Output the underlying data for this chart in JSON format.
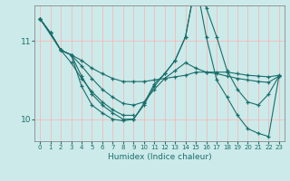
{
  "xlabel": "Humidex (Indice chaleur)",
  "bg_color": "#cceaea",
  "grid_color": "#f5baba",
  "line_color": "#1a6e6a",
  "xlim": [
    -0.5,
    23.5
  ],
  "ylim": [
    9.72,
    11.45
  ],
  "yticks": [
    10,
    11
  ],
  "xticks": [
    0,
    1,
    2,
    3,
    4,
    5,
    6,
    7,
    8,
    9,
    10,
    11,
    12,
    13,
    14,
    15,
    16,
    17,
    18,
    19,
    20,
    21,
    22,
    23
  ],
  "lines": [
    {
      "x": [
        0,
        1,
        2,
        3,
        4,
        5,
        6,
        7,
        8,
        9,
        10,
        11,
        12,
        13,
        14,
        15,
        16,
        17,
        18,
        19,
        20,
        21,
        22,
        23
      ],
      "y": [
        11.28,
        11.1,
        10.88,
        10.82,
        10.75,
        10.65,
        10.58,
        10.52,
        10.48,
        10.48,
        10.48,
        10.5,
        10.52,
        10.54,
        10.56,
        10.6,
        10.6,
        10.6,
        10.6,
        10.58,
        10.56,
        10.55,
        10.54,
        10.56
      ]
    },
    {
      "x": [
        0,
        1,
        2,
        3,
        4,
        5,
        6,
        7,
        8,
        9,
        10,
        11,
        12,
        13,
        14,
        15,
        16,
        17,
        18,
        19,
        20,
        21,
        22,
        23
      ],
      "y": [
        11.28,
        11.1,
        10.88,
        10.82,
        10.68,
        10.52,
        10.38,
        10.28,
        10.2,
        10.18,
        10.22,
        10.38,
        10.52,
        10.62,
        10.72,
        10.65,
        10.6,
        10.58,
        10.55,
        10.52,
        10.5,
        10.48,
        10.47,
        10.55
      ]
    },
    {
      "x": [
        0,
        1,
        2,
        3,
        4,
        5,
        6,
        7,
        8,
        9,
        10,
        11,
        12,
        13,
        14,
        15,
        16,
        17,
        18,
        19,
        20,
        21,
        22,
        23
      ],
      "y": [
        11.28,
        11.1,
        10.88,
        10.82,
        10.55,
        10.32,
        10.18,
        10.08,
        10.0,
        10.0,
        10.2,
        10.45,
        10.58,
        10.75,
        11.05,
        11.75,
        11.42,
        11.05,
        10.62,
        10.38,
        10.22,
        10.18,
        10.32,
        10.55
      ]
    },
    {
      "x": [
        0,
        2,
        3,
        4,
        5,
        6,
        7,
        8,
        9,
        10,
        11,
        12,
        13,
        14,
        15,
        16,
        17,
        18,
        19,
        20,
        21,
        22,
        23
      ],
      "y": [
        11.28,
        10.88,
        10.82,
        10.42,
        10.18,
        10.08,
        10.0,
        9.98,
        10.0,
        10.18,
        10.42,
        10.58,
        10.75,
        11.05,
        11.75,
        11.05,
        10.5,
        10.28,
        10.05,
        9.88,
        9.82,
        9.78,
        10.55
      ]
    },
    {
      "x": [
        0,
        1,
        2,
        3,
        4,
        5,
        6,
        7,
        8,
        9
      ],
      "y": [
        11.28,
        11.1,
        10.88,
        10.72,
        10.52,
        10.35,
        10.22,
        10.12,
        10.05,
        10.05
      ]
    }
  ]
}
